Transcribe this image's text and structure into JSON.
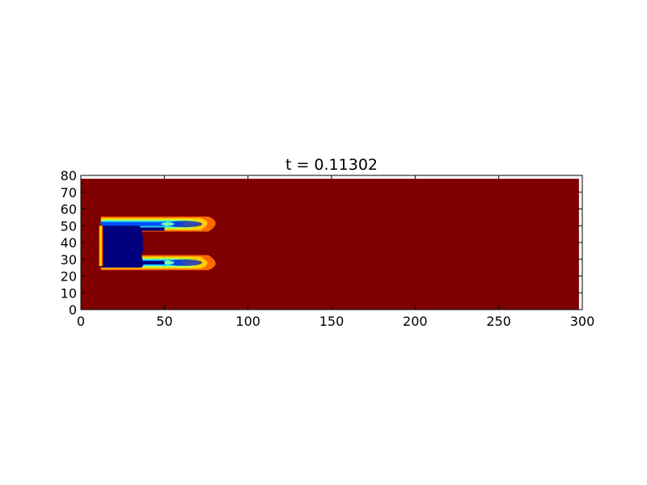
{
  "chart_data": {
    "type": "heatmap",
    "title": "t = 0.11302",
    "xlabel": "",
    "ylabel": "",
    "xlim": [
      0,
      300
    ],
    "ylim": [
      0,
      80
    ],
    "x_ticks": [
      "0",
      "50",
      "100",
      "150",
      "200",
      "250",
      "300"
    ],
    "y_ticks": [
      "0",
      "10",
      "20",
      "30",
      "40",
      "50",
      "60",
      "70",
      "80"
    ],
    "grid": true,
    "colormap": "jet",
    "field_extent": {
      "x": [
        0,
        298
      ],
      "y": [
        0,
        78
      ]
    },
    "background_color": "#7f0000",
    "regions": [
      {
        "name": "low-core",
        "color": "#00007f",
        "x": [
          12,
          38
        ],
        "y": [
          25,
          50
        ]
      },
      {
        "name": "upper-shear-layer",
        "color_range": [
          "#00007f",
          "#ffff00"
        ],
        "x": [
          12,
          85
        ],
        "y": [
          46,
          54
        ]
      },
      {
        "name": "lower-shear-layer",
        "color_range": [
          "#00007f",
          "#ffff00"
        ],
        "x": [
          12,
          85
        ],
        "y": [
          24,
          32
        ]
      },
      {
        "name": "inlet-edge",
        "color": "#ffd700",
        "x": [
          11,
          13
        ],
        "y": [
          26,
          50
        ]
      }
    ]
  }
}
